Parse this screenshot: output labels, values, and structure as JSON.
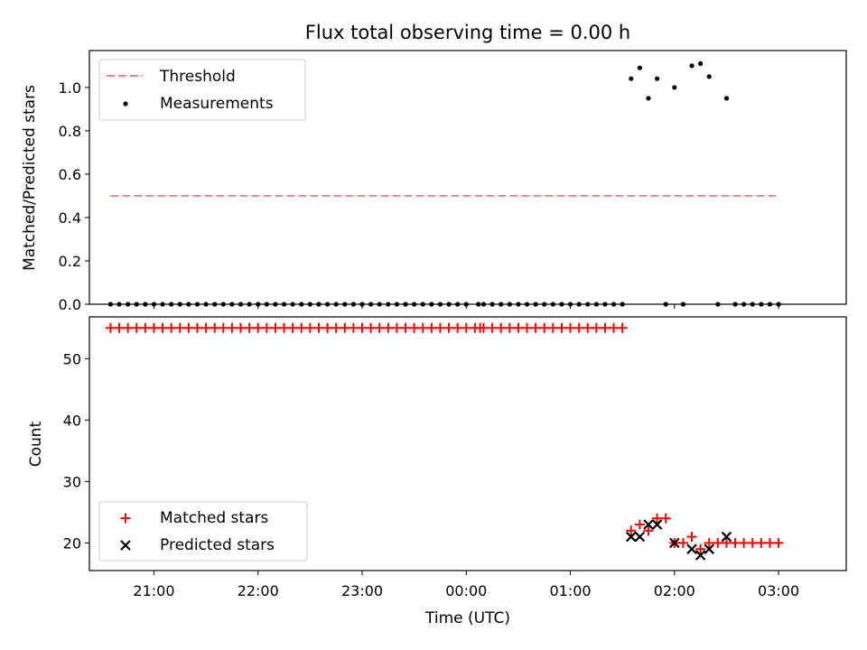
{
  "chart_data": [
    {
      "type": "scatter",
      "title": "Flux total observing time = 0.00 h",
      "ylabel": "Matched/Predicted stars",
      "xlabel": "",
      "xlim_hours": [
        20.38,
        3.65
      ],
      "ylim": [
        0,
        1.17
      ],
      "yticks": [
        0.0,
        0.2,
        0.4,
        0.6,
        0.8,
        1.0
      ],
      "ytick_labels": [
        "0.0",
        "0.2",
        "0.4",
        "0.6",
        "0.8",
        "1.0"
      ],
      "legend_position": "top-left",
      "legend": [
        "Threshold",
        "Measurements"
      ],
      "threshold": {
        "name": "Threshold",
        "value": 0.5,
        "x_start": "20:35",
        "x_end": "03:00",
        "color": "#ff7f7f"
      },
      "measurements": {
        "name": "Measurements",
        "color": "#000000",
        "zero_times": [
          "20:35",
          "20:40",
          "20:45",
          "20:50",
          "20:55",
          "21:00",
          "21:05",
          "21:10",
          "21:15",
          "21:20",
          "21:25",
          "21:30",
          "21:35",
          "21:40",
          "21:45",
          "21:50",
          "21:55",
          "22:00",
          "22:05",
          "22:10",
          "22:15",
          "22:20",
          "22:25",
          "22:30",
          "22:35",
          "22:40",
          "22:45",
          "22:50",
          "22:55",
          "23:00",
          "23:05",
          "23:10",
          "23:15",
          "23:20",
          "23:25",
          "23:30",
          "23:35",
          "23:40",
          "23:45",
          "23:50",
          "23:55",
          "00:00",
          "00:07",
          "00:10",
          "00:15",
          "00:20",
          "00:25",
          "00:30",
          "00:35",
          "00:40",
          "00:45",
          "00:50",
          "00:55",
          "01:00",
          "01:05",
          "01:10",
          "01:15",
          "01:20",
          "01:25",
          "01:30",
          "01:55",
          "02:05",
          "02:25",
          "02:35",
          "02:40",
          "02:45",
          "02:50",
          "02:55",
          "03:00"
        ],
        "points": [
          {
            "x": "01:35",
            "y": 1.04
          },
          {
            "x": "01:40",
            "y": 1.09
          },
          {
            "x": "01:45",
            "y": 0.95
          },
          {
            "x": "01:50",
            "y": 1.04
          },
          {
            "x": "02:00",
            "y": 1.0
          },
          {
            "x": "02:10",
            "y": 1.1
          },
          {
            "x": "02:15",
            "y": 1.11
          },
          {
            "x": "02:20",
            "y": 1.05
          },
          {
            "x": "02:30",
            "y": 0.95
          }
        ]
      }
    },
    {
      "type": "scatter",
      "title": "",
      "ylabel": "Count",
      "xlabel": "Time (UTC)",
      "xlim_hours": [
        20.38,
        3.65
      ],
      "ylim": [
        15.5,
        56.8
      ],
      "yticks": [
        20,
        30,
        40,
        50
      ],
      "ytick_labels": [
        "20",
        "30",
        "40",
        "50"
      ],
      "xtick_labels": [
        "21:00",
        "22:00",
        "23:00",
        "00:00",
        "01:00",
        "02:00",
        "03:00"
      ],
      "legend_position": "bottom-left",
      "legend": [
        "Matched stars",
        "Predicted stars"
      ],
      "matched": {
        "name": "Matched stars",
        "color": "#ff0000",
        "constant_55_times": [
          "20:35",
          "20:40",
          "20:45",
          "20:50",
          "20:55",
          "21:00",
          "21:05",
          "21:10",
          "21:15",
          "21:20",
          "21:25",
          "21:30",
          "21:35",
          "21:40",
          "21:45",
          "21:50",
          "21:55",
          "22:00",
          "22:05",
          "22:10",
          "22:15",
          "22:20",
          "22:25",
          "22:30",
          "22:35",
          "22:40",
          "22:45",
          "22:50",
          "22:55",
          "23:00",
          "23:05",
          "23:10",
          "23:15",
          "23:20",
          "23:25",
          "23:30",
          "23:35",
          "23:40",
          "23:45",
          "23:50",
          "23:55",
          "00:00",
          "00:05",
          "00:08",
          "00:10",
          "00:15",
          "00:20",
          "00:25",
          "00:30",
          "00:35",
          "00:40",
          "00:45",
          "00:50",
          "00:55",
          "01:00",
          "01:05",
          "01:10",
          "01:15",
          "01:20",
          "01:25",
          "01:30"
        ],
        "points": [
          {
            "x": "01:35",
            "y": 22
          },
          {
            "x": "01:40",
            "y": 23
          },
          {
            "x": "01:45",
            "y": 22
          },
          {
            "x": "01:50",
            "y": 24
          },
          {
            "x": "01:55",
            "y": 24
          },
          {
            "x": "02:00",
            "y": 20
          },
          {
            "x": "02:05",
            "y": 20
          },
          {
            "x": "02:10",
            "y": 21
          },
          {
            "x": "02:15",
            "y": 19
          },
          {
            "x": "02:20",
            "y": 20
          },
          {
            "x": "02:25",
            "y": 20
          },
          {
            "x": "02:30",
            "y": 20
          },
          {
            "x": "02:35",
            "y": 20
          },
          {
            "x": "02:40",
            "y": 20
          },
          {
            "x": "02:45",
            "y": 20
          },
          {
            "x": "02:50",
            "y": 20
          },
          {
            "x": "02:55",
            "y": 20
          },
          {
            "x": "03:00",
            "y": 20
          }
        ]
      },
      "predicted": {
        "name": "Predicted stars",
        "color": "#000000",
        "points": [
          {
            "x": "01:35",
            "y": 21
          },
          {
            "x": "01:40",
            "y": 21
          },
          {
            "x": "01:45",
            "y": 23
          },
          {
            "x": "01:50",
            "y": 23
          },
          {
            "x": "02:00",
            "y": 20
          },
          {
            "x": "02:10",
            "y": 19
          },
          {
            "x": "02:15",
            "y": 18
          },
          {
            "x": "02:20",
            "y": 19
          },
          {
            "x": "02:30",
            "y": 21
          }
        ]
      }
    }
  ]
}
